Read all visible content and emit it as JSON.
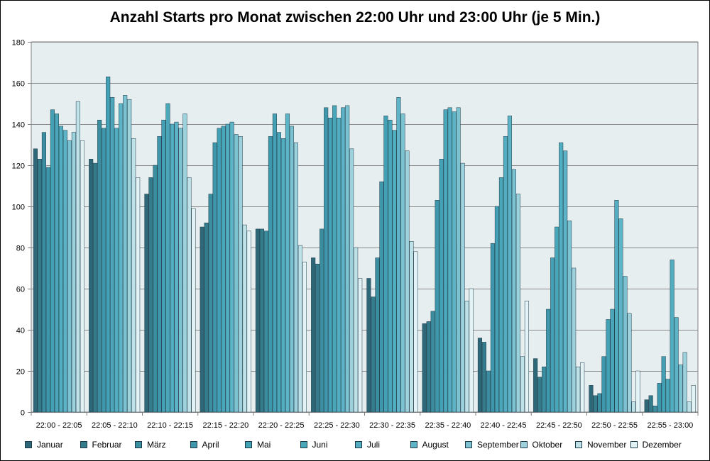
{
  "chart_data": {
    "type": "bar",
    "title": "Anzahl Starts pro Monat zwischen 22:00 Uhr und 23:00 Uhr (je 5 Min.)",
    "xlabel": "",
    "ylabel": "",
    "ylim": [
      0,
      180
    ],
    "yticks": [
      0,
      20,
      40,
      60,
      80,
      100,
      120,
      140,
      160,
      180
    ],
    "grid": true,
    "legend_position": "bottom",
    "categories": [
      "22:00 - 22:05",
      "22:05 - 22:10",
      "22:10 - 22:15",
      "22:15 - 22:20",
      "22:20 - 22:25",
      "22:25 - 22:30",
      "22:30 - 22:35",
      "22:35 - 22:40",
      "22:40 - 22:45",
      "22:45 - 22:50",
      "22:50 - 22:55",
      "22:55 - 23:00"
    ],
    "series": [
      {
        "name": "Januar",
        "color": "#2e6878",
        "values": [
          128,
          123,
          106,
          90,
          89,
          75,
          65,
          43,
          36,
          26,
          13,
          6
        ]
      },
      {
        "name": "Februar",
        "color": "#347b8c",
        "values": [
          123,
          121,
          114,
          92,
          89,
          72,
          56,
          44,
          34,
          17,
          8,
          8
        ]
      },
      {
        "name": "März",
        "color": "#3a8ea0",
        "values": [
          136,
          142,
          120,
          106,
          88,
          89,
          75,
          49,
          20,
          22,
          9,
          3
        ]
      },
      {
        "name": "April",
        "color": "#3f97ab",
        "values": [
          119,
          138,
          134,
          131,
          134,
          148,
          112,
          103,
          82,
          50,
          27,
          14
        ]
      },
      {
        "name": "Mai",
        "color": "#44a0b4",
        "values": [
          147,
          163,
          142,
          138,
          145,
          143,
          144,
          123,
          100,
          75,
          45,
          27
        ]
      },
      {
        "name": "Juni",
        "color": "#4aa6b9",
        "values": [
          145,
          153,
          150,
          139,
          136,
          149,
          142,
          147,
          114,
          90,
          50,
          16
        ]
      },
      {
        "name": "Juli",
        "color": "#52adc0",
        "values": [
          139,
          138,
          140,
          140,
          133,
          143,
          137,
          148,
          134,
          131,
          103,
          74
        ]
      },
      {
        "name": "August",
        "color": "#5db4c6",
        "values": [
          137,
          150,
          141,
          141,
          145,
          148,
          153,
          146,
          144,
          127,
          94,
          46
        ]
      },
      {
        "name": "September",
        "color": "#7cc2d1",
        "values": [
          132,
          154,
          138,
          135,
          139,
          149,
          145,
          148,
          118,
          93,
          66,
          23
        ]
      },
      {
        "name": "Oktober",
        "color": "#9dd1dc",
        "values": [
          136,
          152,
          145,
          134,
          131,
          128,
          127,
          121,
          106,
          70,
          48,
          29
        ]
      },
      {
        "name": "November",
        "color": "#bfe1e8",
        "values": [
          151,
          133,
          114,
          91,
          81,
          80,
          83,
          54,
          27,
          22,
          5,
          5
        ]
      },
      {
        "name": "Dezember",
        "color": "#e3f2f5",
        "values": [
          132,
          114,
          99,
          88,
          73,
          65,
          78,
          60,
          54,
          24,
          20,
          13
        ]
      }
    ]
  }
}
